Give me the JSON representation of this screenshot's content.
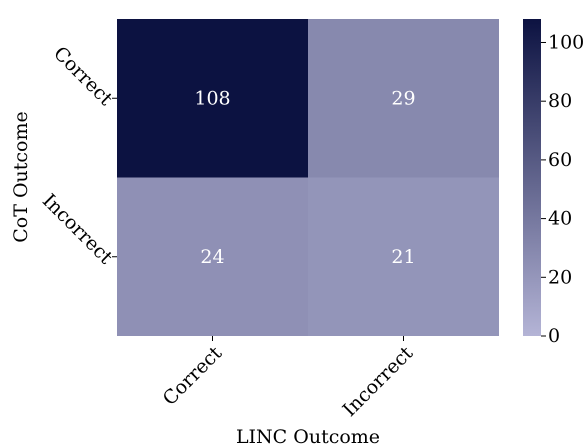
{
  "chart_data": {
    "type": "heatmap",
    "title": "",
    "xlabel": "LINC Outcome",
    "ylabel": "CoT Outcome",
    "x_categories": [
      "Correct",
      "Incorrect"
    ],
    "y_categories": [
      "Correct",
      "Incorrect"
    ],
    "values": [
      [
        108,
        29
      ],
      [
        24,
        21
      ]
    ],
    "colorbar": {
      "range": [
        0,
        108
      ],
      "ticks": [
        0,
        20,
        40,
        60,
        80,
        100
      ],
      "low_color": "#b4b4d6",
      "high_color": "#0c1241"
    },
    "cell_label_color": "#ffffff",
    "legend": "colorbar-right",
    "grid": false
  }
}
